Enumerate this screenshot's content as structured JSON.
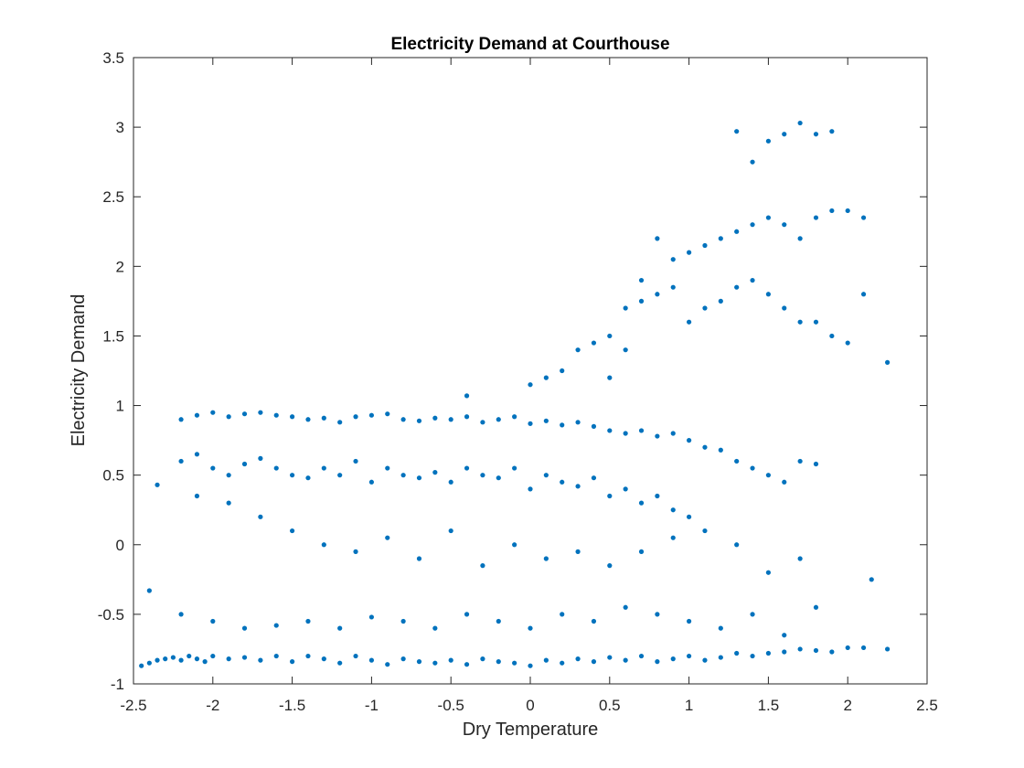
{
  "chart_data": {
    "type": "scatter",
    "title": "Electricity Demand at Courthouse",
    "xlabel": "Dry Temperature",
    "ylabel": "Electricity Demand",
    "xlim": [
      -2.5,
      2.5
    ],
    "ylim": [
      -1,
      3.5
    ],
    "xticks": [
      "-2.5",
      "-2",
      "-1.5",
      "-1",
      "-0.5",
      "0",
      "0.5",
      "1",
      "1.5",
      "2",
      "2.5"
    ],
    "yticks": [
      "-1",
      "-0.5",
      "0",
      "0.5",
      "1",
      "1.5",
      "2",
      "2.5",
      "3",
      "3.5"
    ],
    "grid": false,
    "colors": {
      "marker": "#0072BD",
      "axis": "#262626",
      "background": "#ffffff"
    },
    "series": [
      {
        "x": [
          -2.45,
          -2.4,
          -2.35,
          -2.3,
          -2.25,
          -2.2,
          -2.15,
          -2.1,
          -2.05,
          -2.0,
          -1.9,
          -1.8,
          -1.7,
          -1.6,
          -1.5,
          -1.4,
          -1.3,
          -1.2,
          -1.1,
          -1.0,
          -0.9,
          -0.8,
          -0.7,
          -0.6,
          -0.5,
          -0.4,
          -0.3,
          -0.2,
          -0.1,
          0.0,
          0.1,
          0.2,
          0.3,
          0.4,
          0.5,
          0.6,
          0.7,
          0.8,
          0.9,
          1.0,
          1.1,
          1.2,
          1.3,
          1.4,
          1.5,
          1.6,
          1.7,
          1.8,
          1.9,
          2.0,
          2.1,
          2.25,
          -2.2,
          -2.1,
          -2.0,
          -1.9,
          -1.8,
          -1.7,
          -1.6,
          -1.5,
          -1.4,
          -1.3,
          -1.2,
          -1.1,
          -1.0,
          -0.9,
          -0.8,
          -0.7,
          -0.6,
          -0.5,
          -0.4,
          -0.3,
          -0.2,
          -0.1,
          0.0,
          0.1,
          0.2,
          0.3,
          0.4,
          0.5,
          0.6,
          0.7,
          0.8,
          0.9,
          1.0,
          1.1,
          1.2,
          1.3,
          1.4,
          1.5,
          1.6,
          1.7,
          1.8,
          -2.2,
          -2.1,
          -2.0,
          -1.9,
          -1.8,
          -1.7,
          -1.6,
          -1.5,
          -1.4,
          -1.3,
          -1.2,
          -1.1,
          -1.0,
          -0.9,
          -0.8,
          -0.7,
          -0.6,
          -0.5,
          -0.4,
          -0.3,
          -0.2,
          -0.1,
          0.0,
          0.1,
          0.2,
          0.3,
          0.4,
          0.5,
          0.6,
          0.7,
          0.8,
          0.9,
          1.0,
          -2.35,
          -2.1,
          -1.9,
          -1.7,
          -1.5,
          -1.3,
          -1.1,
          -0.9,
          -0.7,
          -0.5,
          -0.3,
          -0.1,
          0.1,
          0.3,
          0.5,
          0.7,
          0.9,
          1.1,
          1.3,
          1.5,
          1.7,
          -2.4,
          -2.2,
          -2.0,
          -1.8,
          -1.6,
          -1.4,
          -1.2,
          -1.0,
          -0.8,
          -0.6,
          -0.4,
          -0.2,
          0.0,
          0.2,
          0.4,
          0.6,
          0.8,
          1.0,
          1.2,
          1.4,
          1.6,
          1.8,
          2.15,
          0.3,
          0.4,
          0.5,
          0.6,
          0.7,
          0.8,
          0.9,
          1.0,
          1.1,
          1.2,
          1.3,
          1.4,
          1.5,
          1.6,
          1.7,
          1.8,
          1.9,
          2.0,
          2.1,
          0.5,
          0.6,
          0.7,
          0.8,
          0.9,
          1.0,
          1.1,
          1.2,
          1.3,
          1.4,
          1.5,
          1.6,
          1.7,
          1.8,
          1.9,
          2.0,
          2.1,
          2.25,
          1.3,
          1.4,
          1.5,
          1.6,
          1.7,
          1.8,
          1.9,
          0.0,
          0.1,
          0.2,
          -0.4
        ],
        "y": [
          -0.87,
          -0.85,
          -0.83,
          -0.82,
          -0.81,
          -0.83,
          -0.8,
          -0.82,
          -0.84,
          -0.8,
          -0.82,
          -0.81,
          -0.83,
          -0.8,
          -0.84,
          -0.8,
          -0.82,
          -0.85,
          -0.8,
          -0.83,
          -0.86,
          -0.82,
          -0.84,
          -0.85,
          -0.83,
          -0.86,
          -0.82,
          -0.84,
          -0.85,
          -0.87,
          -0.83,
          -0.85,
          -0.82,
          -0.84,
          -0.81,
          -0.83,
          -0.8,
          -0.84,
          -0.82,
          -0.8,
          -0.83,
          -0.81,
          -0.78,
          -0.8,
          -0.78,
          -0.77,
          -0.75,
          -0.76,
          -0.77,
          -0.74,
          -0.74,
          -0.75,
          0.9,
          0.93,
          0.95,
          0.92,
          0.94,
          0.95,
          0.93,
          0.92,
          0.9,
          0.91,
          0.88,
          0.92,
          0.93,
          0.94,
          0.9,
          0.89,
          0.91,
          0.9,
          0.92,
          0.88,
          0.9,
          0.92,
          0.87,
          0.89,
          0.86,
          0.88,
          0.85,
          0.82,
          0.8,
          0.82,
          0.78,
          0.8,
          0.75,
          0.7,
          0.68,
          0.6,
          0.55,
          0.5,
          0.45,
          0.6,
          0.58,
          0.6,
          0.65,
          0.55,
          0.5,
          0.58,
          0.62,
          0.55,
          0.5,
          0.48,
          0.55,
          0.5,
          0.6,
          0.45,
          0.55,
          0.5,
          0.48,
          0.52,
          0.45,
          0.55,
          0.5,
          0.48,
          0.55,
          0.4,
          0.5,
          0.45,
          0.42,
          0.48,
          0.35,
          0.4,
          0.3,
          0.35,
          0.25,
          0.2,
          0.43,
          0.35,
          0.3,
          0.2,
          0.1,
          0.0,
          -0.05,
          0.05,
          -0.1,
          0.1,
          -0.15,
          0.0,
          -0.1,
          -0.05,
          -0.15,
          -0.05,
          0.05,
          0.1,
          0.0,
          -0.2,
          -0.1,
          -0.33,
          -0.5,
          -0.55,
          -0.6,
          -0.58,
          -0.55,
          -0.6,
          -0.52,
          -0.55,
          -0.6,
          -0.5,
          -0.55,
          -0.6,
          -0.5,
          -0.55,
          -0.45,
          -0.5,
          -0.55,
          -0.6,
          -0.5,
          -0.65,
          -0.45,
          -0.25,
          1.4,
          1.45,
          1.5,
          1.7,
          1.75,
          1.8,
          1.85,
          1.6,
          1.7,
          1.75,
          1.85,
          1.9,
          1.8,
          1.7,
          1.6,
          1.6,
          1.5,
          1.45,
          1.8,
          1.2,
          1.4,
          1.9,
          2.2,
          2.05,
          2.1,
          2.15,
          2.2,
          2.25,
          2.3,
          2.35,
          2.3,
          2.2,
          2.35,
          2.4,
          2.4,
          2.35,
          1.31,
          2.97,
          2.75,
          2.9,
          2.95,
          3.03,
          2.95,
          2.97,
          1.15,
          1.2,
          1.25,
          1.07
        ]
      }
    ]
  }
}
